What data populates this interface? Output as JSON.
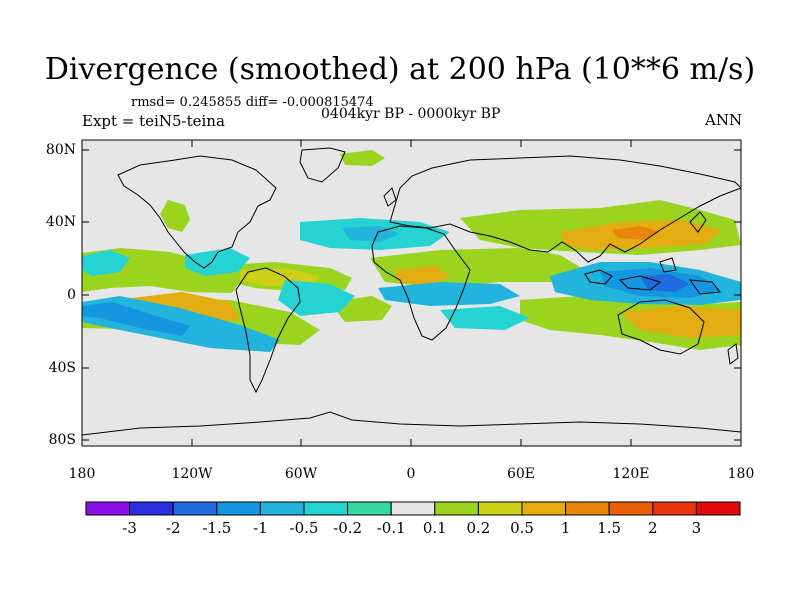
{
  "title": "Divergence (smoothed) at 200 hPa (10**6 m/s)",
  "stats": "rmsd= 0.245855 diff= -0.000815474",
  "period": "0404kyr BP - 0000kyr BP",
  "experiment": "Expt = teiN5-teina",
  "season": "ANN",
  "lat_labels": [
    "80N",
    "40N",
    "0",
    "40S",
    "80S"
  ],
  "lon_labels": [
    "180",
    "120W",
    "60W",
    "0",
    "60E",
    "120E",
    "180"
  ],
  "colorbar": {
    "levels": [
      "-3",
      "-2",
      "-1.5",
      "-1",
      "-0.5",
      "-0.2",
      "-0.1",
      "0.1",
      "0.2",
      "0.5",
      "1",
      "1.5",
      "2",
      "3"
    ],
    "colors": [
      "#8a12e8",
      "#2a30e0",
      "#1f6be0",
      "#1596e0",
      "#22b4dc",
      "#26d3d3",
      "#38d8a2",
      "#e6e6e6",
      "#9bd41e",
      "#cbd016",
      "#e3ac10",
      "#e8860c",
      "#eb5e0a",
      "#e8360a",
      "#e00a0a"
    ]
  },
  "colors": {
    "background": "#e6e6e6",
    "coast": "#000000"
  }
}
